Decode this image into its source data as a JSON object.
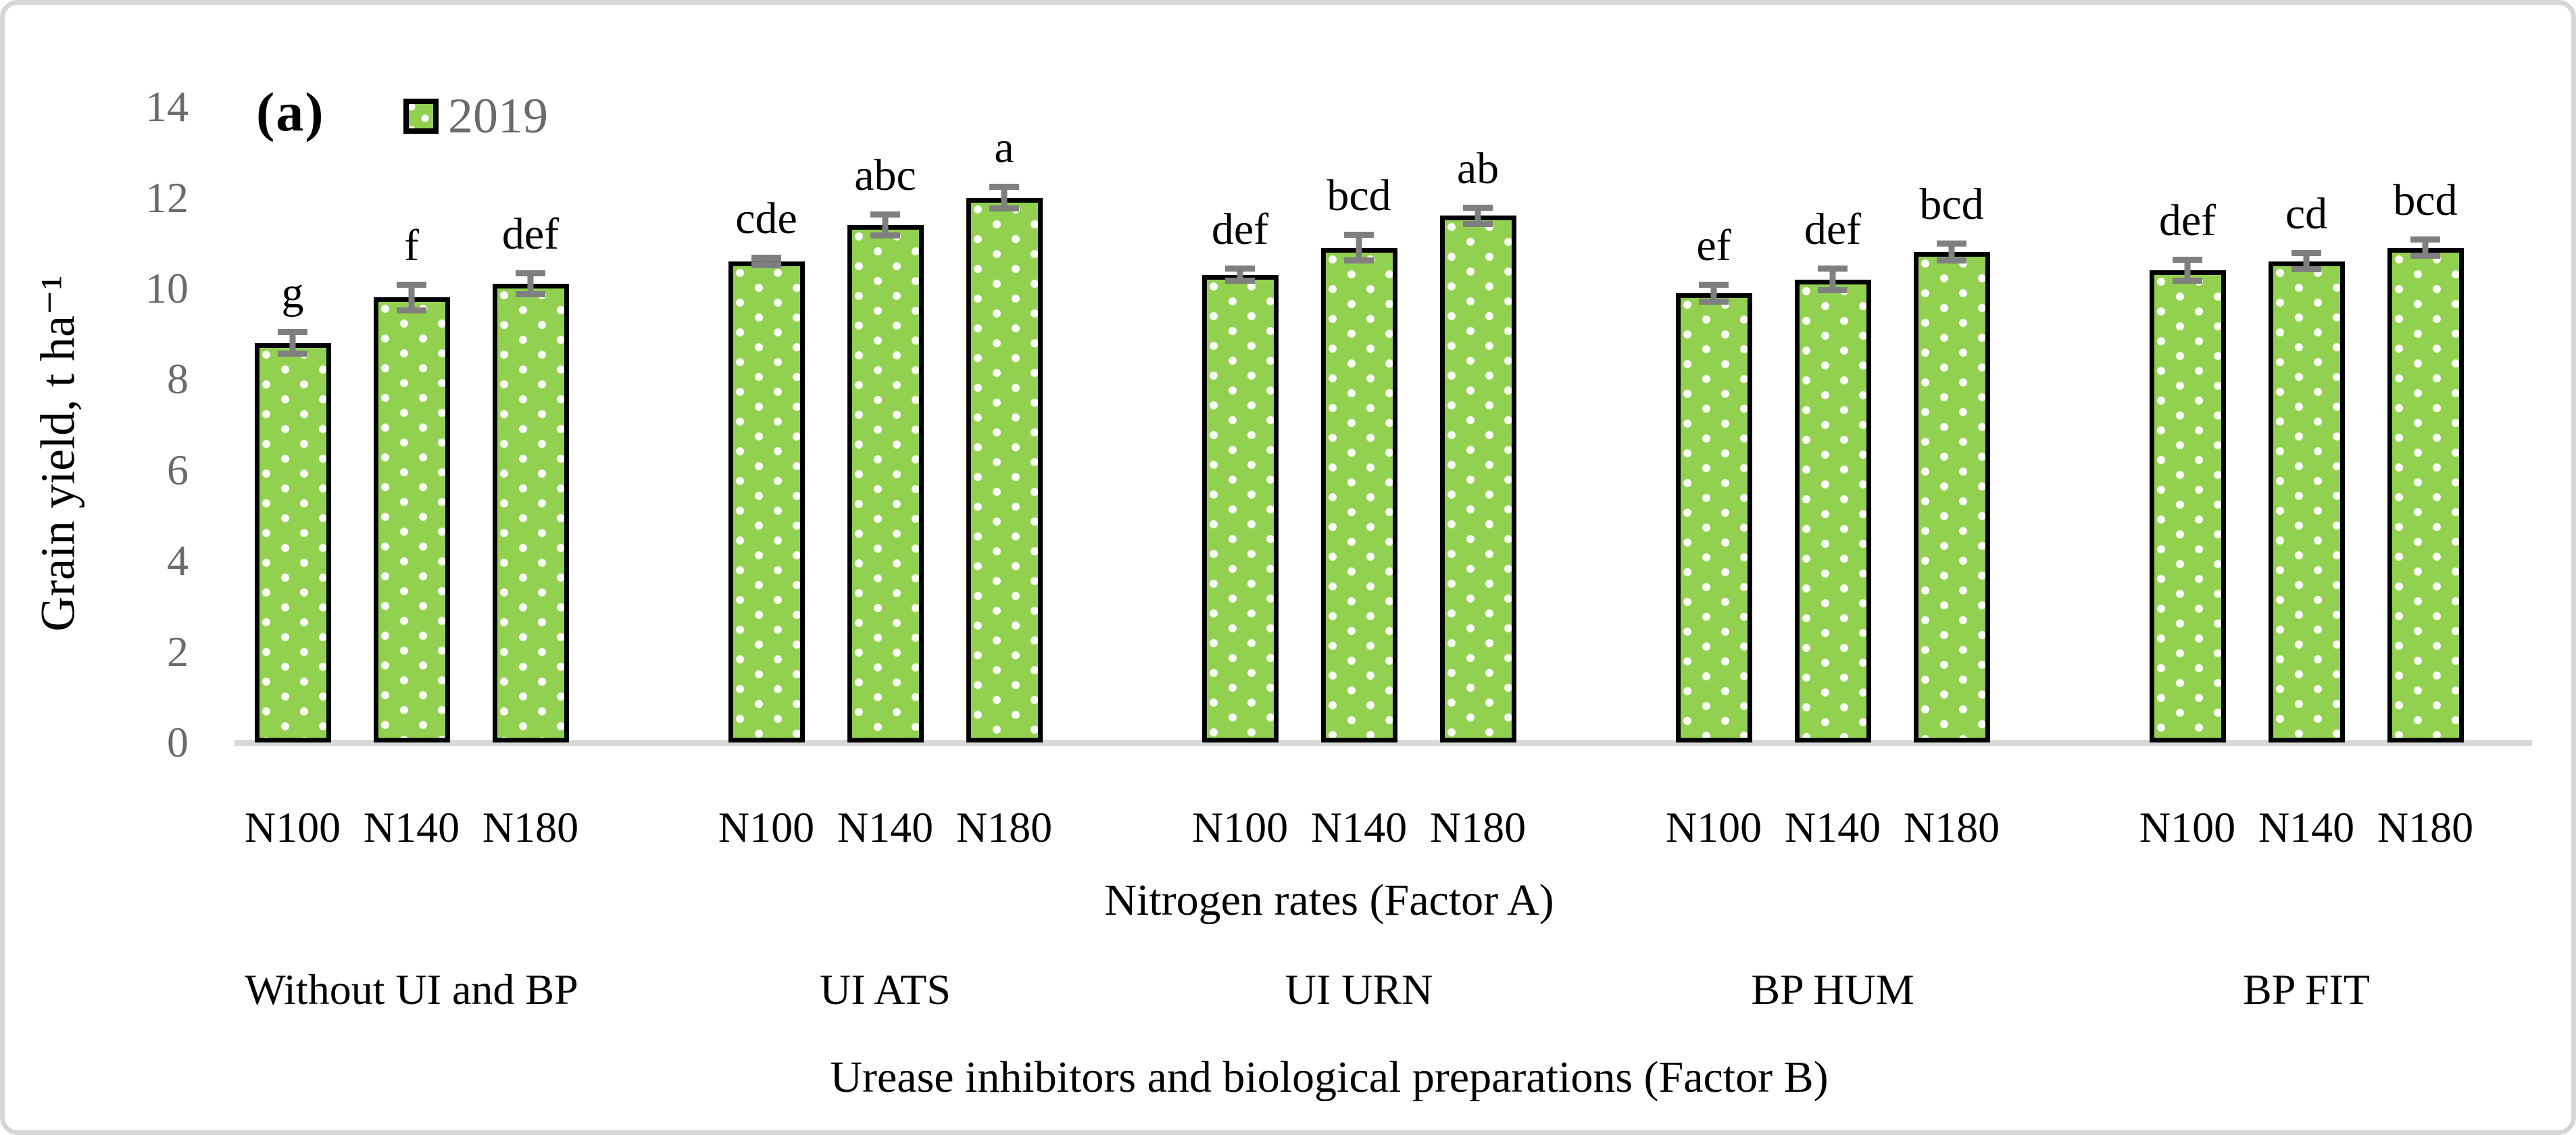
{
  "figure": {
    "panel_label": "(a)",
    "legend": {
      "label": "2019"
    },
    "y_axis": {
      "title": "Grain yield, t ha⁻¹"
    },
    "x_axis": {
      "factor_a_title": "Nitrogen rates (Factor A)",
      "factor_b_title": "Urease inhibitors and biological preparations (Factor B)"
    },
    "colors": {
      "bar_fill": "#92d050",
      "bar_border": "#000000",
      "error_bar": "#7f7f7f",
      "axis_text": "#6a6a6a",
      "baseline": "#d9d9d9",
      "figure_border": "#d6d6d6"
    }
  },
  "chart_data": {
    "type": "bar",
    "title": "",
    "ylabel": "Grain yield, t ha⁻¹",
    "xlabel_primary": "Nitrogen rates (Factor A)",
    "xlabel_secondary": "Urease inhibitors and biological preparations (Factor B)",
    "ylim": [
      0,
      14
    ],
    "yticks": [
      0,
      2,
      4,
      6,
      8,
      10,
      12,
      14
    ],
    "grid": false,
    "legend_position": "top-left",
    "series_name": "2019",
    "categories": [
      "Without UI and BP",
      "UI ATS",
      "UI URN",
      "BP HUM",
      "BP FIT"
    ],
    "nitrogen_rates": [
      "N100",
      "N140",
      "N180"
    ],
    "groups": [
      {
        "category": "Without UI and BP",
        "bars": [
          {
            "rate": "N100",
            "value": 8.8,
            "error": 0.3,
            "letter": "g"
          },
          {
            "rate": "N140",
            "value": 9.8,
            "error": 0.35,
            "letter": "f"
          },
          {
            "rate": "N180",
            "value": 10.1,
            "error": 0.3,
            "letter": "def"
          }
        ]
      },
      {
        "category": "UI ATS",
        "bars": [
          {
            "rate": "N100",
            "value": 10.6,
            "error": 0.15,
            "letter": "cde"
          },
          {
            "rate": "N140",
            "value": 11.4,
            "error": 0.3,
            "letter": "abc"
          },
          {
            "rate": "N180",
            "value": 12.0,
            "error": 0.3,
            "letter": "a"
          }
        ]
      },
      {
        "category": "UI URN",
        "bars": [
          {
            "rate": "N100",
            "value": 10.3,
            "error": 0.2,
            "letter": "def"
          },
          {
            "rate": "N140",
            "value": 10.9,
            "error": 0.35,
            "letter": "bcd"
          },
          {
            "rate": "N180",
            "value": 11.6,
            "error": 0.25,
            "letter": "ab"
          }
        ]
      },
      {
        "category": "BP HUM",
        "bars": [
          {
            "rate": "N100",
            "value": 9.9,
            "error": 0.25,
            "letter": "ef"
          },
          {
            "rate": "N140",
            "value": 10.2,
            "error": 0.3,
            "letter": "def"
          },
          {
            "rate": "N180",
            "value": 10.8,
            "error": 0.25,
            "letter": "bcd"
          }
        ]
      },
      {
        "category": "BP FIT",
        "bars": [
          {
            "rate": "N100",
            "value": 10.4,
            "error": 0.3,
            "letter": "def"
          },
          {
            "rate": "N140",
            "value": 10.6,
            "error": 0.25,
            "letter": "cd"
          },
          {
            "rate": "N180",
            "value": 10.9,
            "error": 0.25,
            "letter": "bcd"
          }
        ]
      }
    ]
  }
}
